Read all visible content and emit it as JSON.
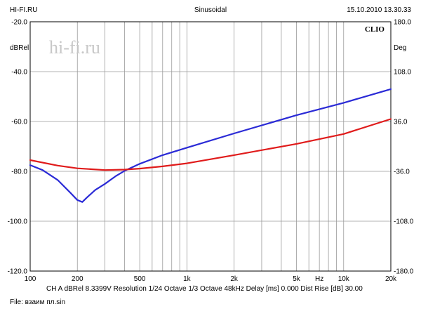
{
  "header": {
    "left": "HI-FI.RU",
    "center": "Sinusoidal",
    "right": "15.10.2010 13.30.33"
  },
  "watermark": "hi-fi.ru",
  "brand": "CLIO",
  "footer": {
    "info": "CH A   dBRel 8.3399V  Resolution 1/24 Octave   1/3 Octave   48kHz   Delay [ms] 0.000    Dist Rise [dB] 30.00",
    "file": "File: взаим пл.sin"
  },
  "chart_data": {
    "type": "line",
    "title": "Sinusoidal",
    "xscale": "log",
    "xlim": [
      100,
      20000
    ],
    "ylim": [
      -120,
      -20
    ],
    "y2lim": [
      -180,
      180
    ],
    "ylabel": "dBRel",
    "y2label": "Deg",
    "grid": true,
    "xticks": [
      {
        "value": 100,
        "label": "100"
      },
      {
        "value": 200,
        "label": "200"
      },
      {
        "value": 500,
        "label": "500"
      },
      {
        "value": 1000,
        "label": "1k"
      },
      {
        "value": 2000,
        "label": "2k"
      },
      {
        "value": 5000,
        "label": "5k"
      },
      {
        "value": 7000,
        "label": "Hz"
      },
      {
        "value": 10000,
        "label": "10k"
      },
      {
        "value": 20000,
        "label": "20k"
      }
    ],
    "yticks": [
      "-20.0",
      "-40.0",
      "-60.0",
      "-80.0",
      "-100.0",
      "-120.0"
    ],
    "y2ticks": [
      "180.0",
      "108.0",
      "36.0",
      "-36.0",
      "-108.0",
      "-180.0"
    ],
    "series": [
      {
        "color": "#2a2ad6",
        "x": [
          100,
          120,
          150,
          180,
          200,
          215,
          230,
          260,
          300,
          350,
          400,
          500,
          700,
          1000,
          2000,
          5000,
          10000,
          20000
        ],
        "y": [
          -77.5,
          -79.5,
          -83.5,
          -88.5,
          -91.5,
          -92.3,
          -90.5,
          -87.5,
          -85,
          -82,
          -79.8,
          -77,
          -73.5,
          -70.5,
          -64.8,
          -57.5,
          -52.5,
          -47
        ]
      },
      {
        "color": "#e01b1b",
        "x": [
          100,
          150,
          200,
          300,
          400,
          500,
          700,
          1000,
          2000,
          5000,
          10000,
          20000
        ],
        "y": [
          -75.5,
          -77.7,
          -78.8,
          -79.5,
          -79.3,
          -78.9,
          -78,
          -76.8,
          -73.5,
          -69,
          -65,
          -59
        ]
      }
    ]
  }
}
